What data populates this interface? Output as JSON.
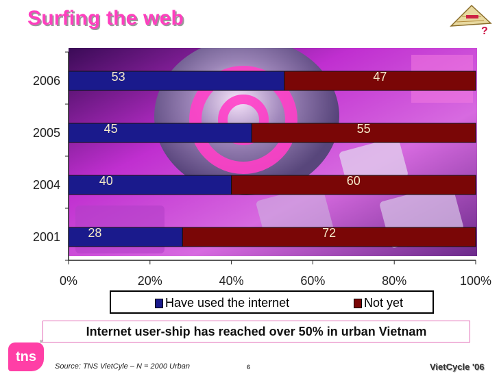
{
  "slide": {
    "title": "Surfing the web",
    "headline": "Internet user-ship has reached over 50% in urban Vietnam",
    "source": "Source: TNS VietCyle – N = 2000 Urban",
    "page_number": "6",
    "brand": "VietCycle '06",
    "logo_text": "tns",
    "logo_mark": "®",
    "hat_icon": "conical-hat-question-icon"
  },
  "colors": {
    "title": "#ff3fbf",
    "series_have_used": "#1a1a8c",
    "series_not_yet": "#7a0606",
    "banner_border": "#e26bb6",
    "logo": "#ff3fa6"
  },
  "chart_data": {
    "type": "bar",
    "orientation": "horizontal",
    "stacked": true,
    "percent_stacked": true,
    "categories": [
      "2006",
      "2005",
      "2004",
      "2001"
    ],
    "series": [
      {
        "name": "Have used the internet",
        "values": [
          53,
          45,
          40,
          28
        ]
      },
      {
        "name": "Not yet",
        "values": [
          47,
          55,
          60,
          72
        ]
      }
    ],
    "x_ticks": [
      "0%",
      "20%",
      "40%",
      "60%",
      "80%",
      "100%"
    ],
    "xlim": [
      0,
      100
    ],
    "legend_position": "bottom",
    "background": "photo of globe with @ symbol and keyboard keys"
  }
}
